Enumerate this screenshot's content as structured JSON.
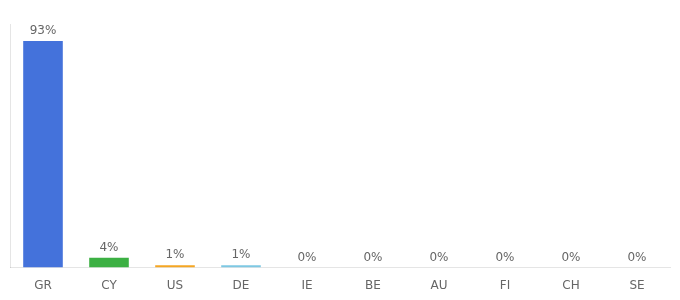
{
  "chart_data": {
    "type": "bar",
    "categories": [
      "GR",
      "CY",
      "US",
      "DE",
      "IE",
      "BE",
      "AU",
      "FI",
      "CH",
      "SE"
    ],
    "values": [
      93,
      4,
      1,
      1,
      0,
      0,
      0,
      0,
      0,
      0
    ],
    "value_labels": [
      "93%",
      "4%",
      "1%",
      "1%",
      "0%",
      "0%",
      "0%",
      "0%",
      "0%",
      "0%"
    ],
    "colors": [
      "#4472db",
      "#3cb043",
      "#f5a623",
      "#7ec8e3",
      "#4472db",
      "#4472db",
      "#4472db",
      "#4472db",
      "#4472db",
      "#4472db"
    ],
    "ylim": [
      0,
      100
    ],
    "data_labels": true,
    "tick_labels": "x",
    "grid": false
  }
}
